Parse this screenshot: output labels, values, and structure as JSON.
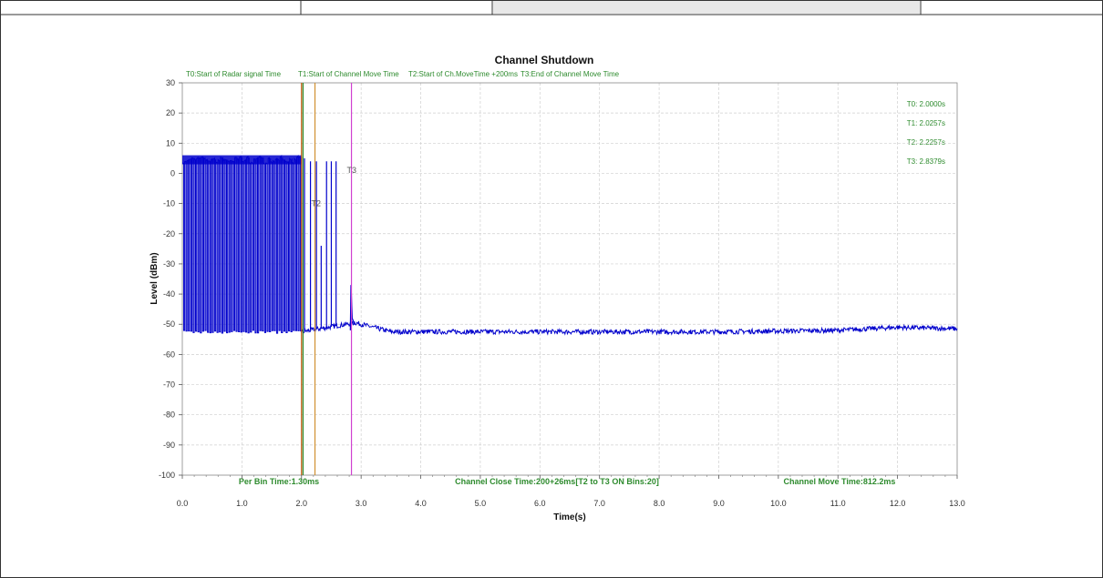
{
  "colors": {
    "trace": "#0000cc",
    "grid": "#cfcfcf",
    "green_text": "#2e8b2e",
    "t0_line": "#c05000",
    "t1_line": "#2e8b2e",
    "t2_line": "#d09030",
    "t3_line": "#d040d0"
  },
  "chart_data": {
    "type": "line",
    "title": "Channel Shutdown",
    "xlabel": "Time(s)",
    "ylabel": "Level (dBm)",
    "xlim": [
      0,
      13
    ],
    "ylim": [
      -100,
      30
    ],
    "x_ticks": [
      "0.0",
      "1.0",
      "2.0",
      "3.0",
      "4.0",
      "5.0",
      "6.0",
      "7.0",
      "8.0",
      "9.0",
      "10.0",
      "11.0",
      "12.0",
      "13.0"
    ],
    "y_ticks": [
      "30",
      "20",
      "10",
      "0",
      "-10",
      "-20",
      "-30",
      "-40",
      "-50",
      "-60",
      "-70",
      "-80",
      "-90",
      "-100"
    ],
    "grid": true,
    "legend_items": [
      "T0:Start of Radar signal Time",
      "T1:Start of Channel Move Time",
      "T2:Start of Ch.MoveTime +200ms",
      "T3:End of Channel Move Time"
    ],
    "markers": [
      {
        "label": "T0",
        "x": 2.0,
        "value_text": "T0: 2.0000s"
      },
      {
        "label": "T1",
        "x": 2.0257,
        "value_text": "T1: 2.0257s"
      },
      {
        "label": "T2",
        "x": 2.2257,
        "value_text": "T2: 2.2257s"
      },
      {
        "label": "T3",
        "x": 2.8379,
        "value_text": "T3: 2.8379s"
      }
    ],
    "marker_plot_labels": [
      "T2",
      "T3"
    ],
    "series": [
      {
        "values_description_free": true,
        "burst_region": {
          "x_start": 0.0,
          "x_end": 2.0,
          "high": 4.5,
          "low": -52.5,
          "pulse_period": 0.04
        },
        "tail_pulses": [
          2.05,
          2.15,
          2.25,
          2.33,
          2.42,
          2.5,
          2.58
        ],
        "tail_pulse_tops": [
          5,
          4,
          4,
          -24,
          4,
          4,
          4
        ],
        "t3_spike": {
          "x": 2.83,
          "y": -37
        },
        "noise_floor": [
          {
            "x": 2.0,
            "y": -52.5
          },
          {
            "x": 2.9,
            "y": -49.5
          },
          {
            "x": 3.3,
            "y": -51.5
          },
          {
            "x": 3.5,
            "y": -52.5
          },
          {
            "x": 9.0,
            "y": -52.5
          },
          {
            "x": 11.0,
            "y": -52.0
          },
          {
            "x": 12.0,
            "y": -51.0
          },
          {
            "x": 13.0,
            "y": -51.5
          }
        ]
      }
    ],
    "bottom_annotations": [
      "Per Bin Time:1.30ms",
      "Channel Close Time:200+26ms[T2 to T3 ON Bins:20]",
      "Channel Move Time:812.2ms"
    ]
  }
}
